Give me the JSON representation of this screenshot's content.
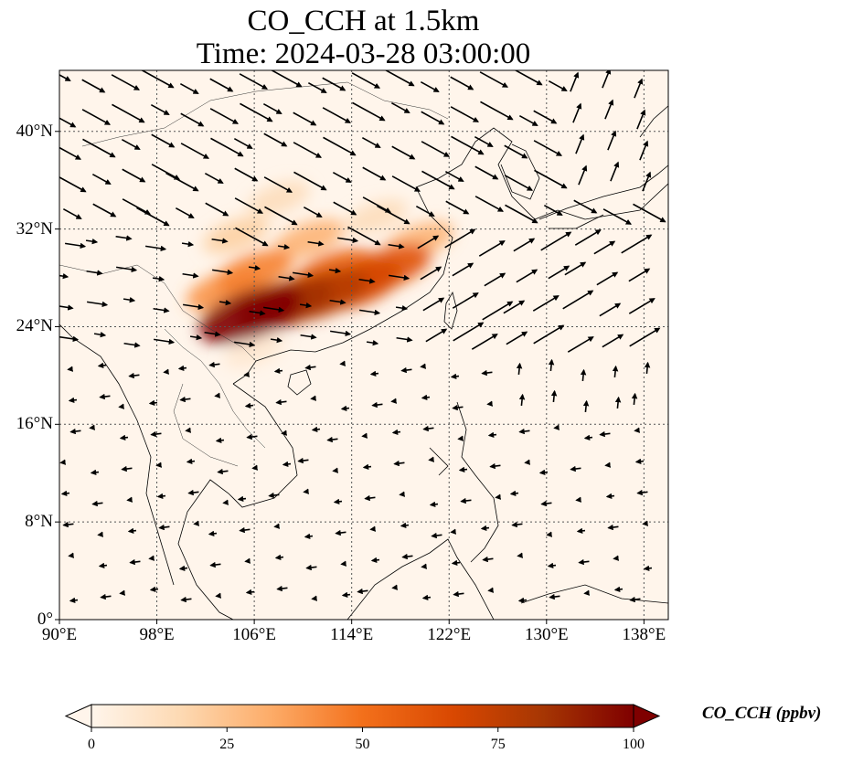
{
  "title": {
    "line1": "CO_CCH at 1.5km",
    "line2": "Time: 2024-03-28 03:00:00"
  },
  "map": {
    "extent": {
      "lon": [
        90,
        140
      ],
      "lat": [
        0,
        45
      ]
    },
    "lat_ticks": [
      {
        "value": 0,
        "label": "0°"
      },
      {
        "value": 8,
        "label": "8°N"
      },
      {
        "value": 16,
        "label": "16°N"
      },
      {
        "value": 24,
        "label": "24°N"
      },
      {
        "value": 32,
        "label": "32°N"
      },
      {
        "value": 40,
        "label": "40°N"
      }
    ],
    "lon_ticks": [
      {
        "value": 90,
        "label": "90°E"
      },
      {
        "value": 98,
        "label": "98°E"
      },
      {
        "value": 106,
        "label": "106°E"
      },
      {
        "value": 114,
        "label": "114°E"
      },
      {
        "value": 122,
        "label": "122°E"
      },
      {
        "value": 130,
        "label": "130°E"
      },
      {
        "value": 138,
        "label": "138°E"
      }
    ],
    "gridlines": true,
    "background_color": "#fff5eb",
    "plume": [
      {
        "lon": 105.7,
        "lat": 25.0,
        "value": 100
      },
      {
        "lon": 108.5,
        "lat": 25.8,
        "value": 85
      },
      {
        "lon": 111.5,
        "lat": 26.6,
        "value": 78
      },
      {
        "lon": 114.5,
        "lat": 27.4,
        "value": 68
      },
      {
        "lon": 117.0,
        "lat": 28.8,
        "value": 62
      },
      {
        "lon": 112.5,
        "lat": 28.5,
        "value": 55
      },
      {
        "lon": 106.0,
        "lat": 28.5,
        "value": 45
      },
      {
        "lon": 103.5,
        "lat": 27.0,
        "value": 40
      },
      {
        "lon": 110.5,
        "lat": 31.2,
        "value": 30
      },
      {
        "lon": 119.5,
        "lat": 31.0,
        "value": 30
      },
      {
        "lon": 104.5,
        "lat": 31.5,
        "value": 20
      },
      {
        "lon": 108.0,
        "lat": 34.5,
        "value": 14
      },
      {
        "lon": 116.0,
        "lat": 33.0,
        "value": 14
      },
      {
        "lon": 106.0,
        "lat": 22.0,
        "value": 8
      }
    ]
  },
  "colorbar": {
    "label": "CO_CCH (ppbv)",
    "min": 0,
    "max": 100,
    "extend": "both",
    "ticks": [
      {
        "value": 0,
        "label": "0"
      },
      {
        "value": 25,
        "label": "25"
      },
      {
        "value": 50,
        "label": "50"
      },
      {
        "value": 75,
        "label": "75"
      },
      {
        "value": 100,
        "label": "100"
      }
    ],
    "colors": [
      "#fff5eb",
      "#fdd9b2",
      "#fdab67",
      "#f3701b",
      "#d94801",
      "#a63603",
      "#7f0000"
    ]
  }
}
